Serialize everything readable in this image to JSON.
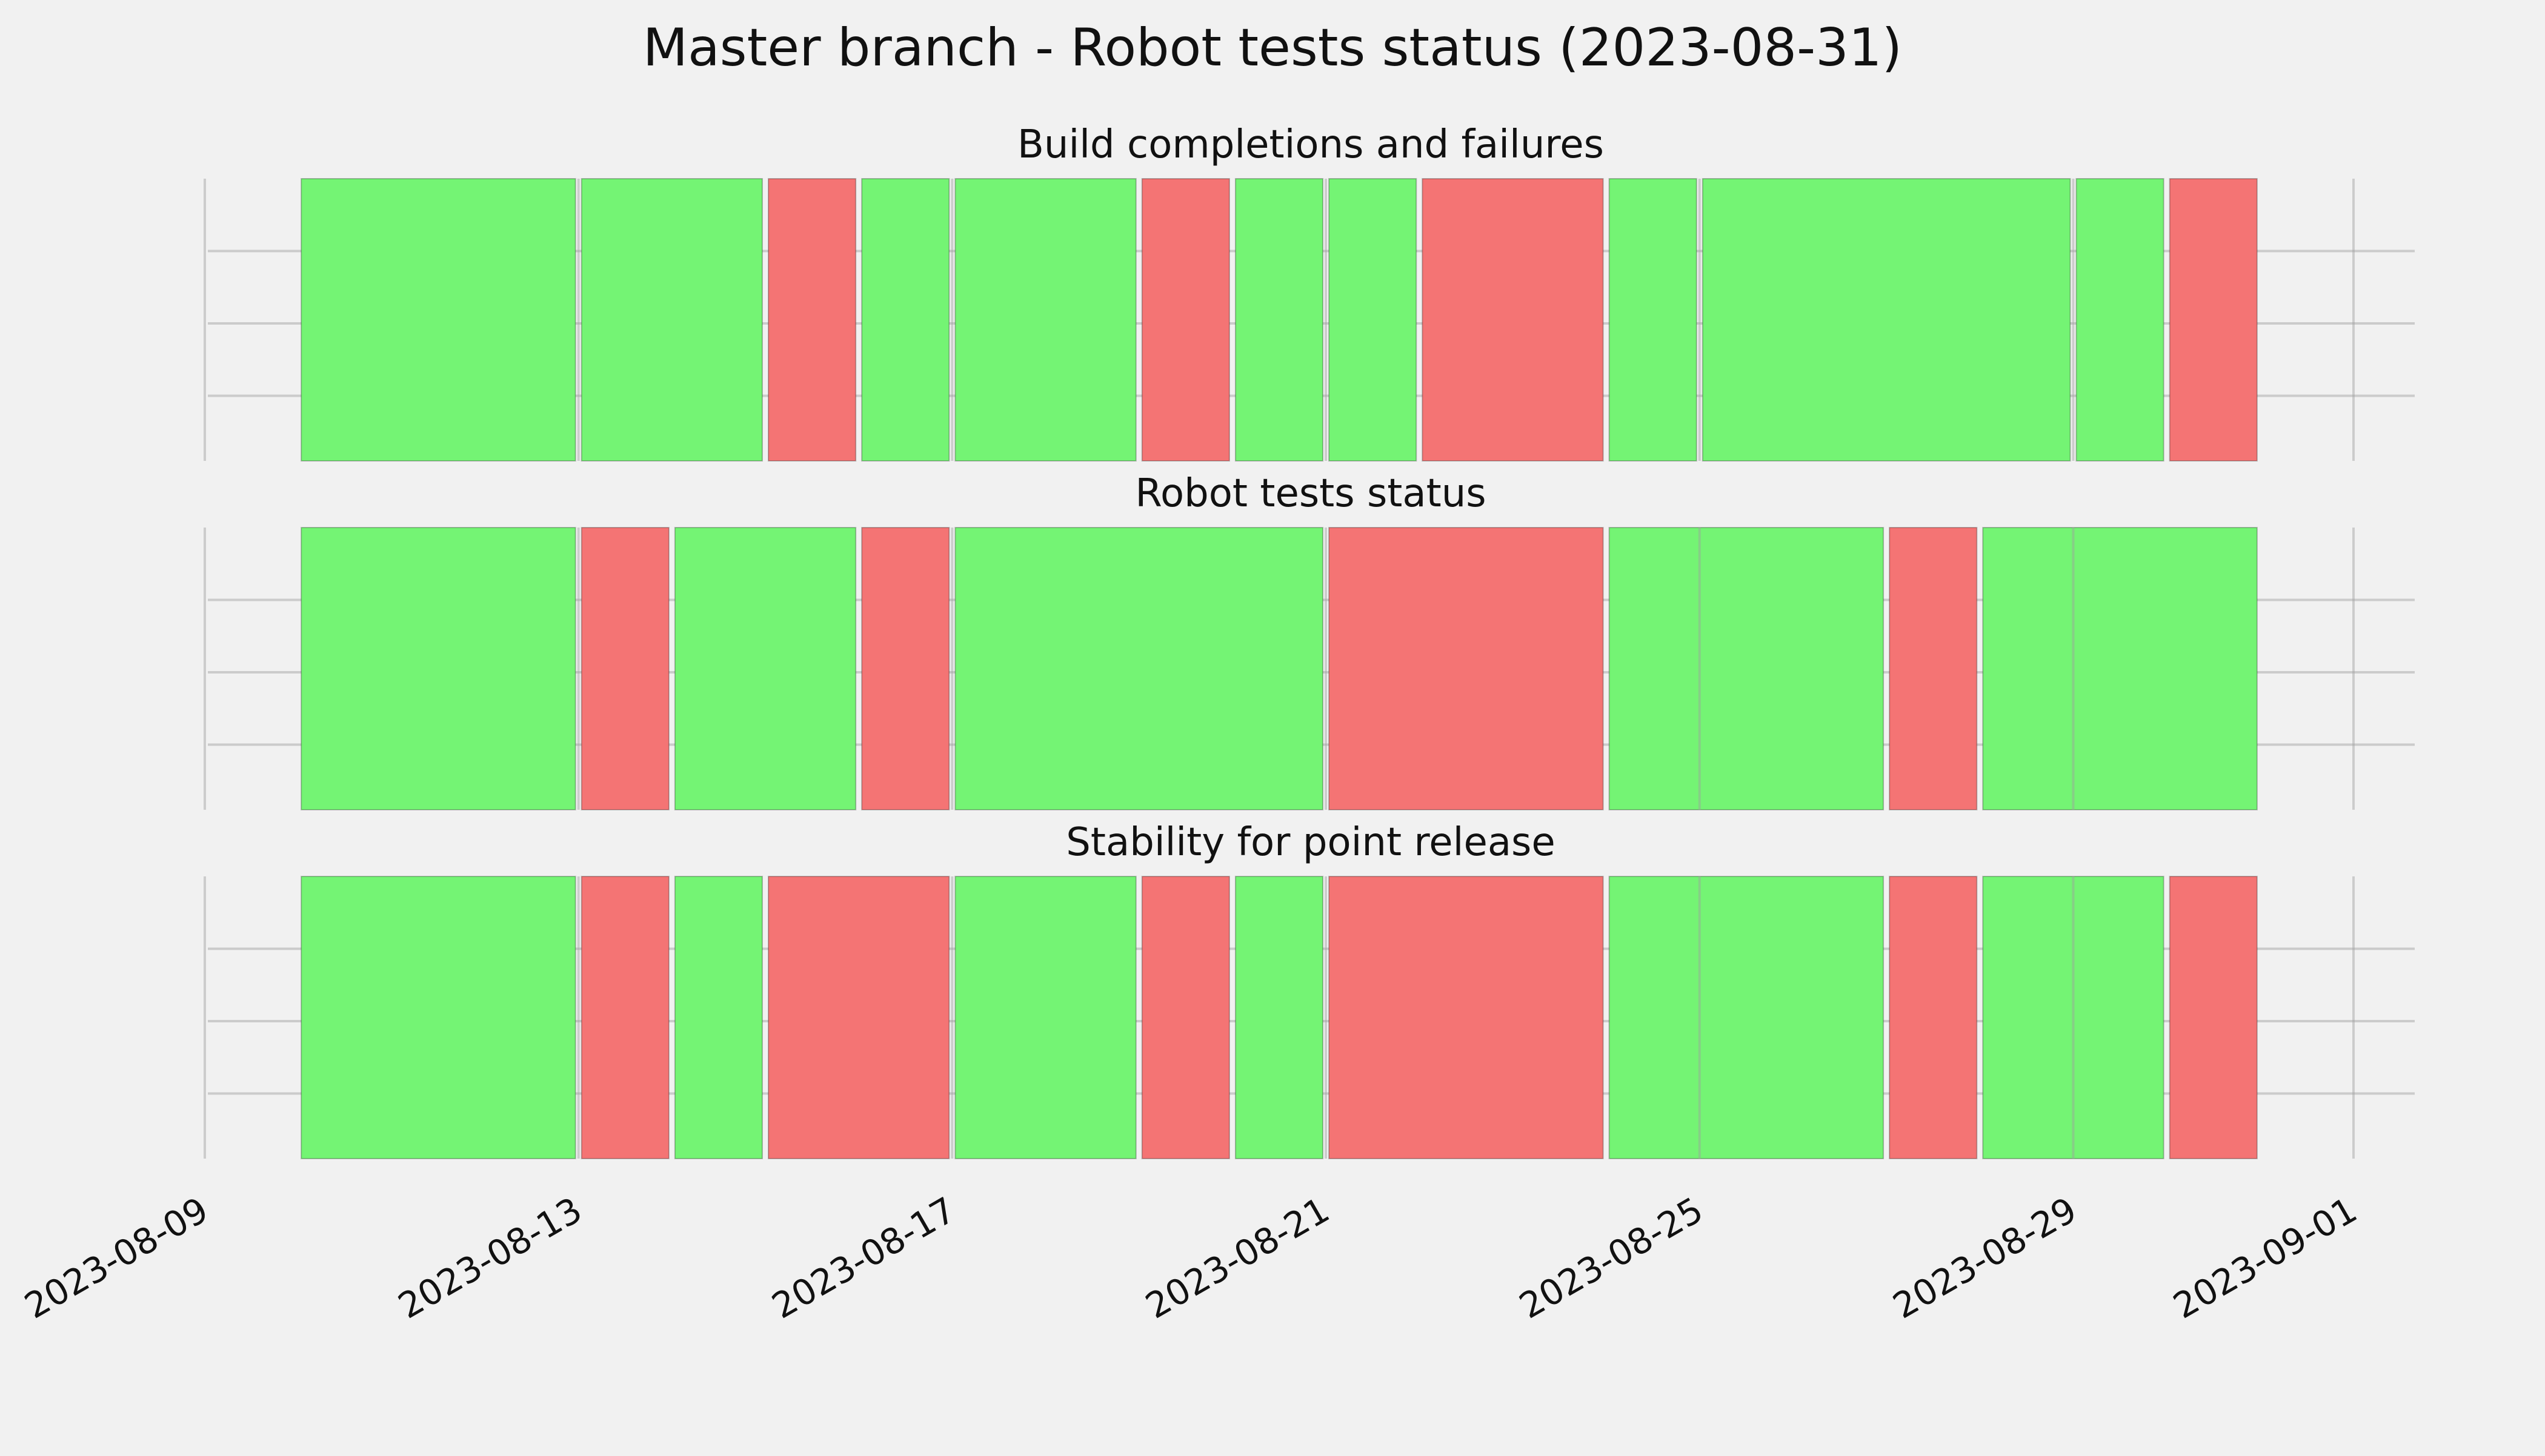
{
  "chart_data": {
    "type": "timeline",
    "title": "Master branch - Robot tests status (2023-08-31)",
    "xlim": [
      "2023-08-09",
      "2023-09-01"
    ],
    "x_ticks": [
      "2023-08-09",
      "2023-08-13",
      "2023-08-17",
      "2023-08-21",
      "2023-08-25",
      "2023-08-29",
      "2023-09-01"
    ],
    "grid": true,
    "colors": {
      "pass": "#74f474",
      "fail": "#f47474",
      "background": "#f1f1f1",
      "grid": "#cbcbcb"
    },
    "panels": [
      {
        "title": "Build completions and failures",
        "segments": [
          {
            "start": "2023-08-10",
            "end": "2023-08-13",
            "status": "pass"
          },
          {
            "start": "2023-08-13",
            "end": "2023-08-15",
            "status": "pass"
          },
          {
            "start": "2023-08-15",
            "end": "2023-08-16",
            "status": "fail"
          },
          {
            "start": "2023-08-16",
            "end": "2023-08-17",
            "status": "pass"
          },
          {
            "start": "2023-08-17",
            "end": "2023-08-19",
            "status": "pass"
          },
          {
            "start": "2023-08-19",
            "end": "2023-08-20",
            "status": "fail"
          },
          {
            "start": "2023-08-20",
            "end": "2023-08-21",
            "status": "pass"
          },
          {
            "start": "2023-08-21",
            "end": "2023-08-22",
            "status": "pass"
          },
          {
            "start": "2023-08-22",
            "end": "2023-08-24",
            "status": "fail"
          },
          {
            "start": "2023-08-24",
            "end": "2023-08-25",
            "status": "pass"
          },
          {
            "start": "2023-08-25",
            "end": "2023-08-29",
            "status": "pass"
          },
          {
            "start": "2023-08-29",
            "end": "2023-08-30",
            "status": "pass"
          },
          {
            "start": "2023-08-30",
            "end": "2023-08-31",
            "status": "fail"
          }
        ]
      },
      {
        "title": "Robot tests status",
        "segments": [
          {
            "start": "2023-08-10",
            "end": "2023-08-13",
            "status": "pass"
          },
          {
            "start": "2023-08-13",
            "end": "2023-08-14",
            "status": "fail"
          },
          {
            "start": "2023-08-14",
            "end": "2023-08-16",
            "status": "pass"
          },
          {
            "start": "2023-08-16",
            "end": "2023-08-17",
            "status": "fail"
          },
          {
            "start": "2023-08-17",
            "end": "2023-08-21",
            "status": "pass"
          },
          {
            "start": "2023-08-21",
            "end": "2023-08-24",
            "status": "fail"
          },
          {
            "start": "2023-08-24",
            "end": "2023-08-27",
            "status": "pass"
          },
          {
            "start": "2023-08-27",
            "end": "2023-08-28",
            "status": "fail"
          },
          {
            "start": "2023-08-28",
            "end": "2023-08-31",
            "status": "pass"
          }
        ]
      },
      {
        "title": "Stability for point release",
        "segments": [
          {
            "start": "2023-08-10",
            "end": "2023-08-13",
            "status": "pass"
          },
          {
            "start": "2023-08-13",
            "end": "2023-08-14",
            "status": "fail"
          },
          {
            "start": "2023-08-14",
            "end": "2023-08-15",
            "status": "pass"
          },
          {
            "start": "2023-08-15",
            "end": "2023-08-17",
            "status": "fail"
          },
          {
            "start": "2023-08-17",
            "end": "2023-08-19",
            "status": "pass"
          },
          {
            "start": "2023-08-19",
            "end": "2023-08-20",
            "status": "fail"
          },
          {
            "start": "2023-08-20",
            "end": "2023-08-21",
            "status": "pass"
          },
          {
            "start": "2023-08-21",
            "end": "2023-08-24",
            "status": "fail"
          },
          {
            "start": "2023-08-24",
            "end": "2023-08-27",
            "status": "pass"
          },
          {
            "start": "2023-08-27",
            "end": "2023-08-28",
            "status": "fail"
          },
          {
            "start": "2023-08-28",
            "end": "2023-08-30",
            "status": "pass"
          },
          {
            "start": "2023-08-30",
            "end": "2023-08-31",
            "status": "fail"
          }
        ]
      }
    ]
  }
}
